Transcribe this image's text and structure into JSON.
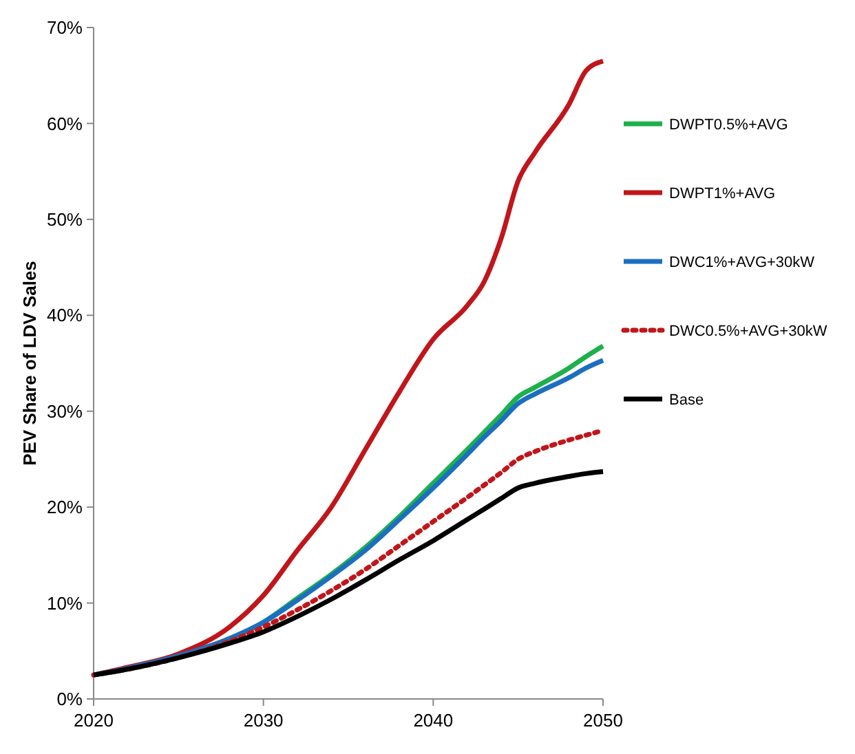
{
  "chart_data": {
    "type": "line",
    "ylabel": "PEV Share of LDV Sales",
    "xlim": [
      2020,
      2050
    ],
    "xticks": [
      2020,
      2030,
      2040,
      2050
    ],
    "ylim": [
      0,
      70
    ],
    "yticks": [
      {
        "value": 0,
        "label": "0%"
      },
      {
        "value": 10,
        "label": "10%"
      },
      {
        "value": 20,
        "label": "20%"
      },
      {
        "value": 30,
        "label": "30%"
      },
      {
        "value": 40,
        "label": "40%"
      },
      {
        "value": 50,
        "label": "50%"
      },
      {
        "value": 60,
        "label": "60%"
      },
      {
        "value": 70,
        "label": "70%"
      }
    ],
    "grid": false,
    "legend": "right",
    "marker": "none",
    "x": [
      2020,
      2022,
      2025,
      2028,
      2030,
      2032,
      2034,
      2036,
      2038,
      2040,
      2042,
      2043,
      2044,
      2045,
      2046,
      2048,
      2049,
      2050
    ],
    "series": [
      {
        "name": "DWPT0.5%+AVG",
        "color": "#1db04b",
        "line_style": "solid",
        "values": [
          null,
          null,
          4.5,
          6.3,
          8,
          10.5,
          13,
          15.8,
          19,
          22.5,
          26,
          27.8,
          29.6,
          31.5,
          32.5,
          34.5,
          35.7,
          36.8
        ]
      },
      {
        "name": "DWPT1%+AVG",
        "color": "#c0161b",
        "line_style": "solid",
        "values": [
          2.5,
          3.3,
          4.7,
          7.5,
          10.8,
          15.5,
          20,
          26,
          32,
          37.5,
          41,
          43.5,
          48,
          54,
          57,
          62,
          65.5,
          66.5
        ]
      },
      {
        "name": "DWC1%+AVG+30kW",
        "color": "#1c6fc0",
        "line_style": "solid",
        "values": [
          2.5,
          3.2,
          4.5,
          6.3,
          8,
          10.3,
          12.8,
          15.5,
          18.7,
          22,
          25.5,
          27.3,
          29,
          30.8,
          31.8,
          33.5,
          34.5,
          35.3
        ]
      },
      {
        "name": "DWC0.5%+AVG+30kW",
        "color": "#c0161b",
        "line_style": "dotted",
        "values": [
          2.5,
          3.1,
          4.3,
          6,
          7.5,
          9.3,
          11.3,
          13.5,
          16,
          18.5,
          21,
          22.3,
          23.6,
          25,
          25.8,
          27,
          27.5,
          28
        ]
      },
      {
        "name": "Base",
        "color": "#000000",
        "line_style": "solid",
        "values": [
          2.5,
          3.1,
          4.3,
          5.8,
          7,
          8.6,
          10.4,
          12.4,
          14.5,
          16.5,
          18.7,
          19.8,
          20.9,
          22,
          22.5,
          23.2,
          23.5,
          23.7
        ]
      }
    ]
  }
}
